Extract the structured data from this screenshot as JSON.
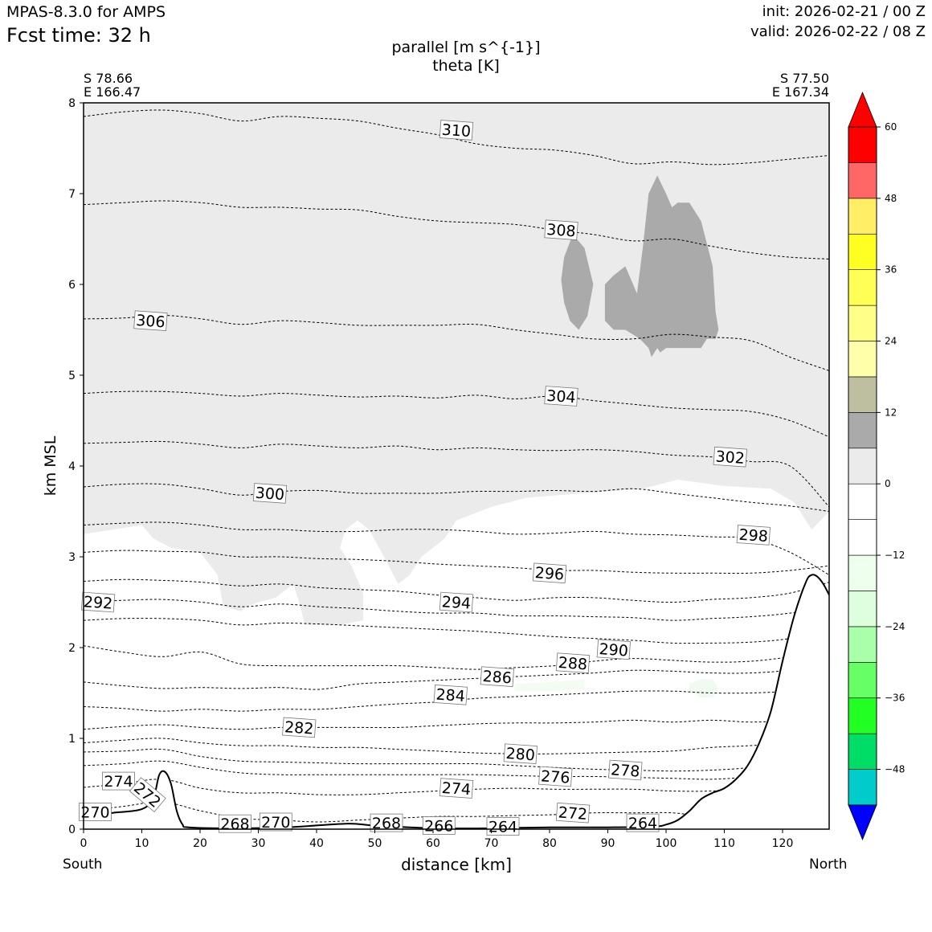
{
  "header": {
    "app_title": "MPAS-8.3.0 for AMPS",
    "fcst_time": "Fcst time:   32 h",
    "init": "init: 2026-02-21 / 00 Z",
    "valid": "valid: 2026-02-22 / 08 Z",
    "var_primary": "parallel [m s^{-1}]",
    "var_secondary": "theta [K]"
  },
  "cross_section": {
    "start_lat": "S 78.66",
    "start_lon": "E 166.47",
    "end_lat": "S 77.50",
    "end_lon": "E 167.34",
    "start_dir": "South",
    "end_dir": "North"
  },
  "colors": {
    "terrain_line": "#000000",
    "contour_line": "#000000",
    "fill_levels": [
      "#0000ff",
      "#00cccc",
      "#00dd66",
      "#22ff22",
      "#66ff66",
      "#aaffaa",
      "#ddffdd",
      "#eeffee",
      "#ffffff",
      "#ffffff",
      "#ebebeb",
      "#aaaaaa",
      "#bebea0",
      "#ffffaa",
      "#ffff88",
      "#ffff55",
      "#ffff22",
      "#ffee66",
      "#ff6666",
      "#ff0000"
    ]
  },
  "chart_data": {
    "type": "cross-section contour",
    "title": "parallel [m s^{-1}] / theta [K]",
    "xlabel": "distance [km]",
    "ylabel": "km MSL",
    "xlim": [
      0,
      128
    ],
    "ylim": [
      0,
      8
    ],
    "xticks": [
      "0",
      "10",
      "20",
      "30",
      "40",
      "50",
      "60",
      "70",
      "80",
      "90",
      "100",
      "110",
      "120"
    ],
    "yticks": [
      "0",
      "1",
      "2",
      "3",
      "4",
      "5",
      "6",
      "7",
      "8"
    ],
    "colorbar": {
      "ticks": [
        "60",
        "48",
        "36",
        "24",
        "12",
        "0",
        "−12",
        "−24",
        "−36",
        "−48"
      ],
      "levels": [
        -54,
        -48,
        -42,
        -36,
        -30,
        -24,
        -18,
        -12,
        -6,
        0,
        6,
        12,
        18,
        24,
        30,
        36,
        42,
        48,
        54,
        60
      ],
      "extend": "both"
    },
    "terrain_km": [
      [
        0,
        0.15
      ],
      [
        5,
        0.18
      ],
      [
        10,
        0.22
      ],
      [
        12,
        0.35
      ],
      [
        13,
        0.6
      ],
      [
        14,
        0.63
      ],
      [
        15,
        0.5
      ],
      [
        16,
        0.2
      ],
      [
        17,
        0.05
      ],
      [
        18,
        0.02
      ],
      [
        25,
        0.01
      ],
      [
        35,
        0.02
      ],
      [
        45,
        0.06
      ],
      [
        50,
        0.04
      ],
      [
        60,
        0.01
      ],
      [
        70,
        0.01
      ],
      [
        80,
        0.02
      ],
      [
        90,
        0.02
      ],
      [
        98,
        0.03
      ],
      [
        100,
        0.05
      ],
      [
        102,
        0.1
      ],
      [
        104,
        0.2
      ],
      [
        106,
        0.33
      ],
      [
        108,
        0.4
      ],
      [
        110,
        0.45
      ],
      [
        112,
        0.55
      ],
      [
        114,
        0.7
      ],
      [
        116,
        0.95
      ],
      [
        118,
        1.3
      ],
      [
        120,
        1.85
      ],
      [
        122,
        2.35
      ],
      [
        124,
        2.72
      ],
      [
        125,
        2.8
      ],
      [
        126,
        2.78
      ],
      [
        127,
        2.7
      ],
      [
        128,
        2.58
      ]
    ],
    "theta_contours": [
      {
        "level": "310",
        "label_x": 64,
        "label_y": 7.7,
        "y": [
          7.85,
          7.9,
          7.92,
          7.88,
          7.8,
          7.85,
          7.83,
          7.8,
          7.72,
          7.65,
          7.55,
          7.5,
          7.48,
          7.42,
          7.33,
          7.35,
          7.32,
          7.34,
          7.38,
          7.42
        ]
      },
      {
        "level": "308",
        "label_x": 82,
        "label_y": 6.6,
        "y": [
          6.88,
          6.9,
          6.92,
          6.9,
          6.85,
          6.85,
          6.83,
          6.82,
          6.75,
          6.7,
          6.68,
          6.66,
          6.6,
          6.55,
          6.48,
          6.5,
          6.42,
          6.35,
          6.3,
          6.28
        ]
      },
      {
        "level": "306",
        "label_x": 11.5,
        "label_y": 5.6,
        "y": [
          5.62,
          5.63,
          5.66,
          5.62,
          5.56,
          5.6,
          5.58,
          5.55,
          5.55,
          5.55,
          5.56,
          5.5,
          5.45,
          5.4,
          5.4,
          5.45,
          5.42,
          5.38,
          5.2,
          5.05
        ]
      },
      {
        "level": "304",
        "label_x": 82,
        "label_y": 4.77,
        "y": [
          4.8,
          4.82,
          4.82,
          4.8,
          4.77,
          4.8,
          4.78,
          4.76,
          4.77,
          4.75,
          4.78,
          4.74,
          4.77,
          4.72,
          4.68,
          4.64,
          4.62,
          4.6,
          4.5,
          4.32
        ]
      },
      {
        "level": "302",
        "label_x": 111,
        "label_y": 4.1,
        "y": [
          4.25,
          4.26,
          4.27,
          4.24,
          4.2,
          4.24,
          4.22,
          4.2,
          4.22,
          4.18,
          4.2,
          4.18,
          4.17,
          4.18,
          4.16,
          4.12,
          4.1,
          4.05,
          4.0,
          3.55
        ]
      },
      {
        "level": "300",
        "label_x": 32,
        "label_y": 3.7,
        "y": [
          3.77,
          3.8,
          3.8,
          3.75,
          3.68,
          3.72,
          3.73,
          3.7,
          3.7,
          3.7,
          3.72,
          3.72,
          3.73,
          3.72,
          3.75,
          3.7,
          3.65,
          3.6,
          3.56,
          3.5
        ]
      },
      {
        "level": "298",
        "label_x": 115,
        "label_y": 3.24,
        "y": [
          3.35,
          3.37,
          3.38,
          3.35,
          3.3,
          3.3,
          3.28,
          3.28,
          3.3,
          3.3,
          3.28,
          3.25,
          3.26,
          3.28,
          3.25,
          3.24,
          3.22,
          3.2,
          3.05,
          2.8
        ]
      },
      {
        "level": "296",
        "label_x": 80,
        "label_y": 2.82,
        "y": [
          3.05,
          3.07,
          3.06,
          3.05,
          3.0,
          3.0,
          2.98,
          2.97,
          2.95,
          2.92,
          2.9,
          2.88,
          2.85,
          2.85,
          2.83,
          2.82,
          2.82,
          2.82,
          2.85,
          2.9
        ]
      },
      {
        "level": "294",
        "label_x": 64,
        "label_y": 2.5,
        "y": [
          2.73,
          2.75,
          2.74,
          2.72,
          2.68,
          2.7,
          2.66,
          2.64,
          2.62,
          2.58,
          2.55,
          2.52,
          2.55,
          2.55,
          2.52,
          2.5,
          2.53,
          2.55,
          2.6,
          2.72
        ]
      },
      {
        "level": "292",
        "label_x": 2.5,
        "label_y": 2.5,
        "y": [
          2.5,
          2.52,
          2.53,
          2.5,
          2.45,
          2.48,
          2.45,
          2.43,
          2.4,
          2.38,
          2.38,
          2.35,
          2.35,
          2.34,
          2.33,
          2.3,
          2.32,
          2.34,
          2.38,
          2.45
        ]
      },
      {
        "level": "290",
        "label_x": 91,
        "label_y": 1.98,
        "y": [
          2.3,
          2.32,
          2.32,
          2.3,
          2.25,
          2.27,
          2.26,
          2.24,
          2.22,
          2.2,
          2.18,
          2.15,
          2.12,
          2.1,
          2.08,
          2.05,
          2.05,
          2.06,
          2.1,
          2.2
        ]
      },
      {
        "level": "288",
        "label_x": 84,
        "label_y": 1.83,
        "y": [
          2.02,
          1.95,
          1.9,
          1.95,
          1.82,
          1.8,
          1.8,
          1.8,
          1.8,
          1.78,
          1.76,
          1.78,
          1.8,
          1.85,
          1.88,
          1.86,
          1.84,
          1.85,
          1.9,
          2.0
        ]
      },
      {
        "level": "286",
        "label_x": 71,
        "label_y": 1.68,
        "y": [
          1.62,
          1.58,
          1.55,
          1.56,
          1.55,
          1.56,
          1.54,
          1.6,
          1.62,
          1.64,
          1.66,
          1.68,
          1.7,
          1.72,
          1.75,
          1.74,
          1.72,
          1.72,
          1.75,
          1.8
        ]
      },
      {
        "level": "284",
        "label_x": 63,
        "label_y": 1.48,
        "y": [
          1.35,
          1.33,
          1.3,
          1.32,
          1.3,
          1.32,
          1.32,
          1.35,
          1.38,
          1.4,
          1.44,
          1.46,
          1.48,
          1.5,
          1.52,
          1.52,
          1.5,
          1.5,
          1.52,
          1.55
        ]
      },
      {
        "level": "282",
        "label_x": 37,
        "label_y": 1.12,
        "y": [
          1.1,
          1.13,
          1.15,
          1.12,
          1.1,
          1.12,
          1.12,
          1.12,
          1.12,
          1.14,
          1.16,
          1.17,
          1.17,
          1.18,
          1.2,
          1.18,
          1.2,
          1.18,
          1.2,
          1.25
        ]
      },
      {
        "level": "280",
        "label_x": 75,
        "label_y": 0.83,
        "y": [
          0.95,
          0.98,
          1.0,
          0.95,
          0.92,
          0.92,
          0.9,
          0.9,
          0.88,
          0.86,
          0.84,
          0.83,
          0.83,
          0.84,
          0.85,
          0.86,
          0.9,
          0.92,
          0.95,
          1.0
        ]
      },
      {
        "level": "278",
        "label_x": 93,
        "label_y": 0.65,
        "y": [
          0.85,
          0.86,
          0.88,
          0.8,
          0.75,
          0.74,
          0.73,
          0.72,
          0.72,
          0.72,
          0.72,
          0.7,
          0.68,
          0.66,
          0.65,
          0.64,
          0.65,
          0.68,
          0.75,
          0.85
        ]
      },
      {
        "level": "276",
        "label_x": 81,
        "label_y": 0.58,
        "y": [
          0.7,
          0.72,
          0.75,
          0.68,
          0.62,
          0.6,
          0.6,
          0.6,
          0.6,
          0.6,
          0.6,
          0.59,
          0.58,
          0.58,
          0.57,
          0.56,
          0.55,
          0.58,
          0.65,
          0.75
        ]
      },
      {
        "level": "274",
        "label_x": 64,
        "label_y": 0.45,
        "y": [
          0.46,
          0.5,
          0.55,
          0.45,
          0.4,
          0.4,
          0.38,
          0.38,
          0.4,
          0.42,
          0.44,
          0.45,
          0.44,
          0.44,
          0.44,
          0.42,
          0.42,
          0.45,
          0.55,
          0.65
        ]
      },
      {
        "level": "272",
        "label_x": 84,
        "label_y": 0.18,
        "y": [
          0.2,
          0.25,
          0.3,
          0.2,
          0.12,
          0.1,
          0.08,
          0.1,
          0.12,
          0.14,
          0.14,
          0.15,
          0.16,
          0.18,
          0.18,
          0.18,
          0.14,
          0.2,
          0.3,
          0.45
        ]
      }
    ],
    "extra_labels": [
      {
        "text": "274",
        "x": 6,
        "y": 0.53
      },
      {
        "text": "272",
        "x": 11,
        "y": 0.38,
        "rotate": 40
      },
      {
        "text": "270",
        "x": 2,
        "y": 0.19
      },
      {
        "text": "268",
        "x": 26,
        "y": 0.06
      },
      {
        "text": "270",
        "x": 33,
        "y": 0.08
      },
      {
        "text": "268",
        "x": 52,
        "y": 0.07
      },
      {
        "text": "266",
        "x": 61,
        "y": 0.04
      },
      {
        "text": "264",
        "x": 72,
        "y": 0.03
      },
      {
        "text": "264",
        "x": 96,
        "y": 0.07
      }
    ],
    "wind_regions": [
      {
        "level": "6 to 12",
        "color": "#ebebeb",
        "outline": [
          [
            0,
            8
          ],
          [
            128,
            8
          ],
          [
            128,
            3.5
          ],
          [
            125,
            3.3
          ],
          [
            122,
            3.6
          ],
          [
            118,
            3.75
          ],
          [
            110,
            3.78
          ],
          [
            102,
            3.85
          ],
          [
            96,
            3.75
          ],
          [
            86,
            3.7
          ],
          [
            76,
            3.65
          ],
          [
            70,
            3.55
          ],
          [
            64,
            3.4
          ],
          [
            62,
            3.2
          ],
          [
            58,
            3.0
          ],
          [
            56,
            2.8
          ],
          [
            54,
            2.7
          ],
          [
            52,
            2.95
          ],
          [
            49,
            3.3
          ],
          [
            47,
            3.4
          ],
          [
            45,
            3.3
          ],
          [
            44,
            3.1
          ],
          [
            46,
            2.9
          ],
          [
            48,
            2.6
          ],
          [
            48,
            2.3
          ],
          [
            44,
            2.25
          ],
          [
            38,
            2.25
          ],
          [
            37,
            2.5
          ],
          [
            36,
            2.7
          ],
          [
            33,
            2.55
          ],
          [
            30,
            2.5
          ],
          [
            28,
            2.45
          ],
          [
            27,
            2.4
          ],
          [
            24,
            2.45
          ],
          [
            23,
            2.8
          ],
          [
            20,
            3.05
          ],
          [
            15,
            3.1
          ],
          [
            12,
            3.2
          ],
          [
            10,
            3.35
          ],
          [
            5,
            3.3
          ],
          [
            0,
            3.25
          ]
        ]
      },
      {
        "level": "12 to 18",
        "color": "#aaaaaa",
        "outline": [
          [
            82,
            6.05
          ],
          [
            82.5,
            6.3
          ],
          [
            84,
            6.55
          ],
          [
            86,
            6.4
          ],
          [
            87.5,
            6.0
          ],
          [
            86.5,
            5.65
          ],
          [
            85,
            5.5
          ],
          [
            83.5,
            5.6
          ],
          [
            82.5,
            5.8
          ]
        ]
      },
      {
        "level": "12 to 18",
        "color": "#aaaaaa",
        "outline": [
          [
            89.5,
            6.0
          ],
          [
            91,
            6.1
          ],
          [
            93,
            6.2
          ],
          [
            95,
            5.9
          ],
          [
            96,
            6.4
          ],
          [
            97,
            7.0
          ],
          [
            98.5,
            7.2
          ],
          [
            100,
            7.0
          ],
          [
            101,
            6.85
          ],
          [
            102,
            6.9
          ],
          [
            104,
            6.9
          ],
          [
            106,
            6.7
          ],
          [
            107,
            6.45
          ],
          [
            108,
            6.2
          ],
          [
            108.5,
            5.7
          ],
          [
            109,
            5.5
          ],
          [
            108.5,
            5.4
          ],
          [
            107,
            5.4
          ],
          [
            106,
            5.3
          ],
          [
            104,
            5.3
          ],
          [
            102,
            5.3
          ],
          [
            100,
            5.3
          ],
          [
            99,
            5.25
          ],
          [
            98.5,
            5.3
          ],
          [
            97.5,
            5.2
          ],
          [
            97,
            5.3
          ],
          [
            95.5,
            5.4
          ],
          [
            93,
            5.5
          ],
          [
            91,
            5.5
          ],
          [
            89.5,
            5.6
          ]
        ]
      },
      {
        "level": "-6 to 0",
        "color": "#eefbee",
        "outline": [
          [
            104,
            1.6
          ],
          [
            106,
            1.65
          ],
          [
            108,
            1.65
          ],
          [
            109,
            1.55
          ],
          [
            108,
            1.45
          ],
          [
            106,
            1.45
          ],
          [
            104,
            1.52
          ]
        ]
      },
      {
        "level": "-6 to 0",
        "color": "#f3fcf3",
        "outline": [
          [
            74,
            1.6
          ],
          [
            80,
            1.62
          ],
          [
            86,
            1.65
          ],
          [
            86,
            1.55
          ],
          [
            80,
            1.52
          ],
          [
            74,
            1.52
          ]
        ]
      }
    ]
  }
}
